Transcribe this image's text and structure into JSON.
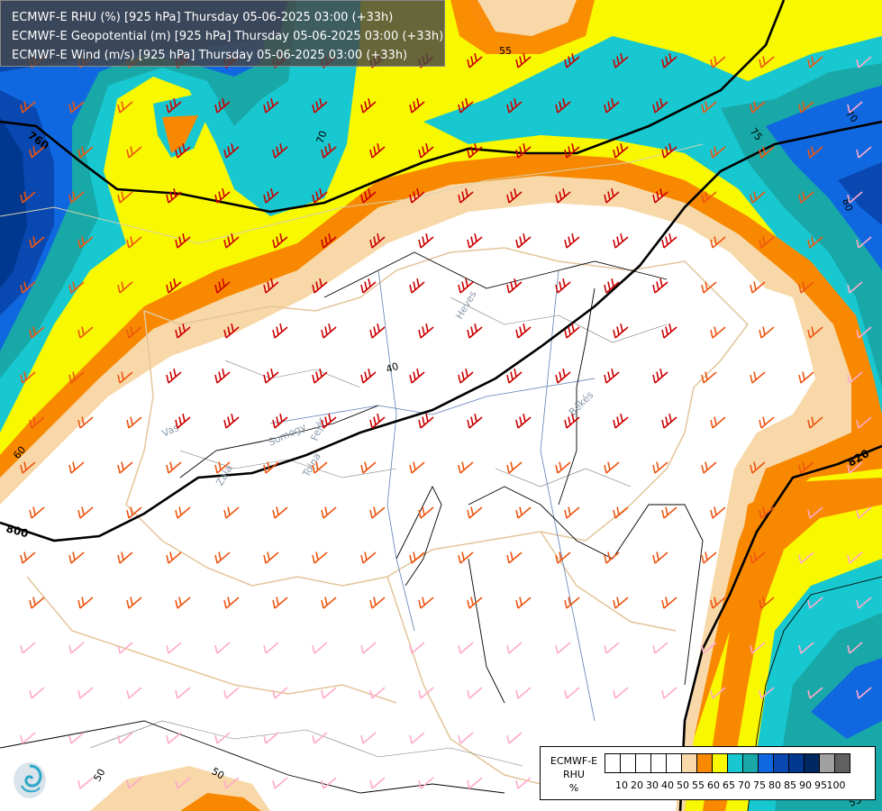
{
  "header": {
    "lines": [
      "ECMWF-E RHU (%) [925 hPa] Thursday 05-06-2025 03:00 (+33h)",
      "ECMWF-E Geopotential (m) [925 hPa] Thursday 05-06-2025 03:00 (+33h)",
      "ECMWF-E Wind (m/s) [925 hPa] Thursday 05-06-2025 03:00 (+33h)"
    ]
  },
  "legend": {
    "title_lines": [
      "ECMWF-E",
      "RHU",
      "%"
    ],
    "colors": [
      "#ffffff",
      "#ffffff",
      "#ffffff",
      "#ffffff",
      "#ffffff",
      "#f8d8a8",
      "#f88800",
      "#f8f800",
      "#18c8d0",
      "#18a8a8",
      "#1068e0",
      "#0848b0",
      "#003890",
      "#002860",
      "#a0a0a0",
      "#606060"
    ],
    "ticks": [
      "10",
      "20",
      "30",
      "40",
      "50",
      "55",
      "60",
      "65",
      "70",
      "75",
      "80",
      "85",
      "90",
      "95",
      "100"
    ]
  },
  "geopotential_labels": [
    "760",
    "800",
    "820"
  ],
  "rhu_contour_labels": [
    "55",
    "70",
    "75",
    "70",
    "80",
    "60",
    "40",
    "50",
    "50",
    "55"
  ],
  "region_labels": [
    "Vas",
    "Somogy",
    "Tolna",
    "Fejér",
    "Heves",
    "Békés",
    "Zala"
  ],
  "colors": {
    "rhu_50_55": "#f8d8a8",
    "rhu_55_60": "#f88800",
    "rhu_60_65": "#f8f800",
    "rhu_65_70": "#18c8d0",
    "rhu_70_75": "#18a8a8",
    "rhu_75_80": "#1068e0",
    "rhu_80_85": "#0848b0",
    "rhu_85_90": "#003890",
    "wind_barb_strong": "#cc0000",
    "wind_barb_medium": "#ee5511",
    "wind_barb_light": "#ffaacc"
  }
}
